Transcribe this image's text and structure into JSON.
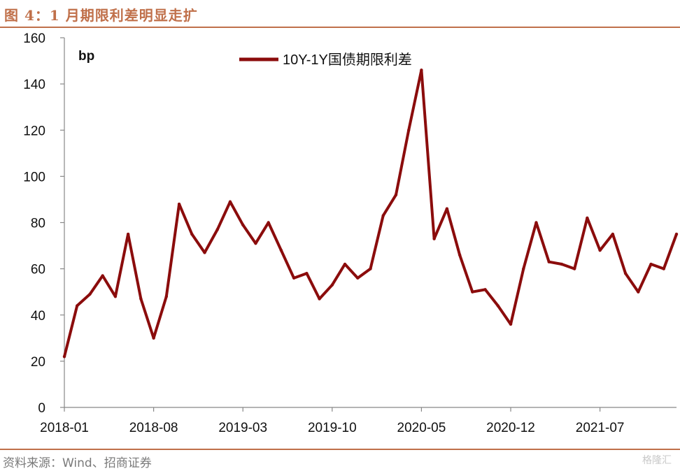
{
  "header": {
    "title": "图 4：1 月期限利差明显走扩"
  },
  "footer": {
    "source": "资料来源：Wind、招商证券",
    "watermark": "格隆汇"
  },
  "colors": {
    "accent": "#c0704a",
    "series": "#8b0c0c",
    "axis": "#888888"
  },
  "chart_data": {
    "type": "line",
    "title": "",
    "xlabel": "",
    "ylabel": "bp",
    "ylim": [
      0,
      160
    ],
    "yticks": [
      0,
      20,
      40,
      60,
      80,
      100,
      120,
      140,
      160
    ],
    "xticks": [
      "2018-01",
      "2018-08",
      "2019-03",
      "2019-10",
      "2020-05",
      "2020-12",
      "2021-07"
    ],
    "grid": false,
    "legend": "top-center",
    "series": [
      {
        "name": "10Y-1Y国债期限利差",
        "color": "#8b0c0c",
        "x": [
          "2018-01",
          "2018-02",
          "2018-03",
          "2018-04",
          "2018-05",
          "2018-06",
          "2018-07",
          "2018-08",
          "2018-09",
          "2018-10",
          "2018-11",
          "2018-12",
          "2019-01",
          "2019-02",
          "2019-03",
          "2019-04",
          "2019-05",
          "2019-06",
          "2019-07",
          "2019-08",
          "2019-09",
          "2019-10",
          "2019-11",
          "2019-12",
          "2020-01",
          "2020-02",
          "2020-03",
          "2020-04",
          "2020-05",
          "2020-06",
          "2020-07",
          "2020-08",
          "2020-09",
          "2020-10",
          "2020-11",
          "2020-12",
          "2021-01",
          "2021-02",
          "2021-03",
          "2021-04",
          "2021-05",
          "2021-06",
          "2021-07",
          "2021-08",
          "2021-09",
          "2021-10",
          "2021-11",
          "2021-12",
          "2022-01"
        ],
        "values": [
          22,
          44,
          49,
          57,
          48,
          75,
          47,
          30,
          48,
          88,
          75,
          67,
          77,
          89,
          79,
          71,
          80,
          68,
          56,
          58,
          47,
          53,
          62,
          56,
          60,
          83,
          92,
          120,
          146,
          73,
          86,
          66,
          50,
          51,
          44,
          36,
          60,
          80,
          63,
          62,
          60,
          82,
          68,
          75,
          58,
          50,
          62,
          60,
          75
        ]
      }
    ]
  }
}
